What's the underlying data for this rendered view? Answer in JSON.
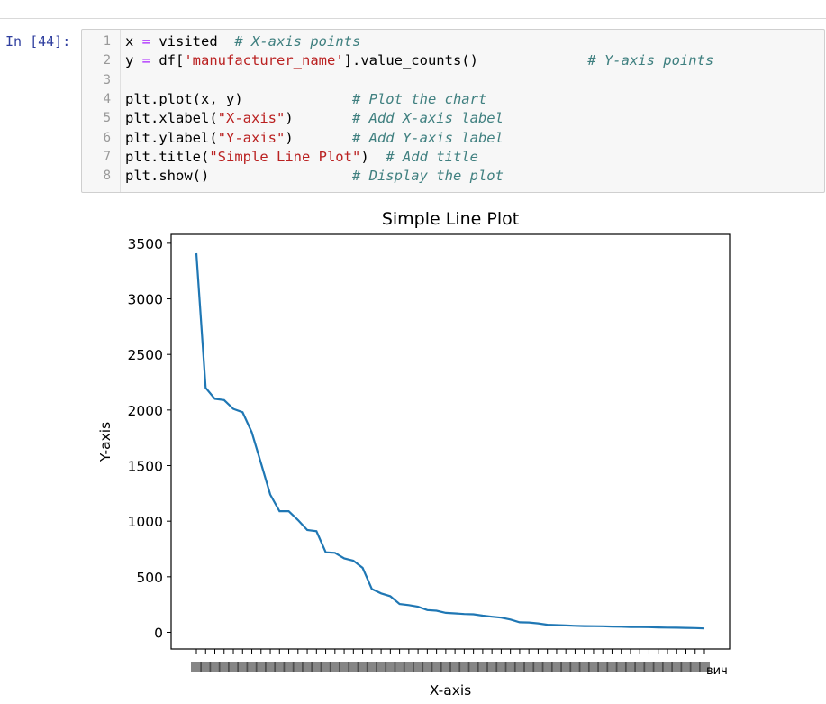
{
  "prompt_label": "In [44]:",
  "code_lines": [
    {
      "n": "1",
      "parts": [
        [
          "x ",
          "kw"
        ],
        [
          "=",
          "op"
        ],
        [
          " visited  ",
          "kw"
        ],
        [
          "# X-axis points",
          "cm"
        ]
      ]
    },
    {
      "n": "2",
      "parts": [
        [
          "y ",
          "kw"
        ],
        [
          "=",
          "op"
        ],
        [
          " df[",
          "kw"
        ],
        [
          "'manufacturer_name'",
          "str"
        ],
        [
          "].value_counts()             ",
          "kw"
        ],
        [
          "# Y-axis points",
          "cm"
        ]
      ]
    },
    {
      "n": "3",
      "parts": []
    },
    {
      "n": "4",
      "parts": [
        [
          "plt.plot(x, y)             ",
          "kw"
        ],
        [
          "# Plot the chart",
          "cm"
        ]
      ]
    },
    {
      "n": "5",
      "parts": [
        [
          "plt.xlabel(",
          "kw"
        ],
        [
          "\"X-axis\"",
          "str"
        ],
        [
          ")       ",
          "kw"
        ],
        [
          "# Add X-axis label",
          "cm"
        ]
      ]
    },
    {
      "n": "6",
      "parts": [
        [
          "plt.ylabel(",
          "kw"
        ],
        [
          "\"Y-axis\"",
          "str"
        ],
        [
          ")       ",
          "kw"
        ],
        [
          "# Add Y-axis label",
          "cm"
        ]
      ]
    },
    {
      "n": "7",
      "parts": [
        [
          "plt.title(",
          "kw"
        ],
        [
          "\"Simple Line Plot\"",
          "str"
        ],
        [
          ")  ",
          "kw"
        ],
        [
          "# Add title",
          "cm"
        ]
      ]
    },
    {
      "n": "8",
      "parts": [
        [
          "plt.show()                 ",
          "kw"
        ],
        [
          "# Display the plot",
          "cm"
        ]
      ]
    }
  ],
  "chart_data": {
    "type": "line",
    "title": "Simple Line Plot",
    "xlabel": "X-axis",
    "ylabel": "Y-axis",
    "ylim": [
      -150,
      3580
    ],
    "yticks": [
      0,
      500,
      1000,
      1500,
      2000,
      2500,
      3000,
      3500
    ],
    "x_tick_count": 56,
    "x_tick_label_tail": "вич",
    "line_color": "#1f77b4",
    "grid": false,
    "values": [
      3410,
      2200,
      2100,
      2090,
      2010,
      1980,
      1800,
      1520,
      1240,
      1090,
      1090,
      1010,
      920,
      910,
      720,
      715,
      665,
      645,
      580,
      390,
      350,
      325,
      255,
      245,
      230,
      200,
      195,
      175,
      170,
      165,
      162,
      150,
      140,
      132,
      115,
      90,
      88,
      80,
      68,
      65,
      62,
      58,
      56,
      55,
      54,
      52,
      50,
      48,
      47,
      46,
      44,
      42,
      41,
      40,
      38,
      35
    ]
  }
}
